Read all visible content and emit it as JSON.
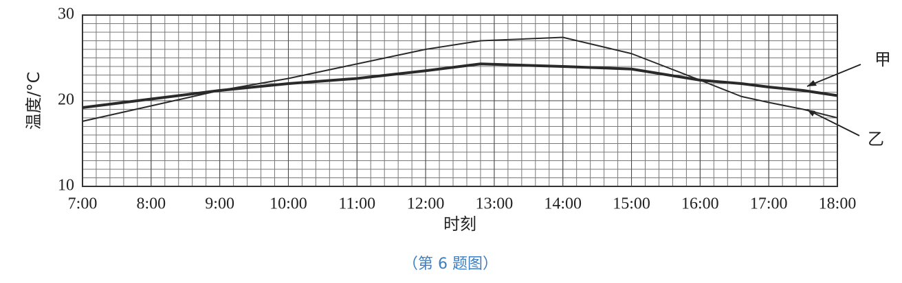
{
  "chart_data": {
    "type": "line",
    "x": [
      7,
      8,
      9,
      10,
      11,
      12,
      12.8,
      14,
      15,
      16,
      16.6,
      17,
      17.5,
      18
    ],
    "xlim": [
      7,
      18
    ],
    "xticks": [
      {
        "value": 7,
        "label": "7:00"
      },
      {
        "value": 8,
        "label": "8:00"
      },
      {
        "value": 9,
        "label": "9:00"
      },
      {
        "value": 10,
        "label": "10:00"
      },
      {
        "value": 11,
        "label": "11:00"
      },
      {
        "value": 12,
        "label": "12:00"
      },
      {
        "value": 13,
        "label": "13:00"
      },
      {
        "value": 14,
        "label": "14:00"
      },
      {
        "value": 15,
        "label": "15:00"
      },
      {
        "value": 16,
        "label": "16:00"
      },
      {
        "value": 17,
        "label": "17:00"
      },
      {
        "value": 18,
        "label": "18:00"
      }
    ],
    "ylim": [
      10,
      30
    ],
    "yticks": [
      10,
      20,
      30
    ],
    "xlabel": "时刻",
    "ylabel": "温度/°C",
    "grid": true,
    "caption": "（第 6 题图）",
    "series": [
      {
        "name": "甲",
        "color": "#2a2a2a",
        "width": 4,
        "values": [
          19.2,
          20.2,
          21.2,
          22.0,
          22.6,
          23.5,
          24.3,
          24.0,
          23.7,
          22.4,
          22.0,
          21.6,
          21.2,
          20.6
        ]
      },
      {
        "name": "乙",
        "color": "#2a2a2a",
        "width": 2,
        "values": [
          17.6,
          19.4,
          21.2,
          22.6,
          24.3,
          26.0,
          27.0,
          27.4,
          25.5,
          22.4,
          20.5,
          19.8,
          19.0,
          18.0
        ]
      }
    ]
  }
}
